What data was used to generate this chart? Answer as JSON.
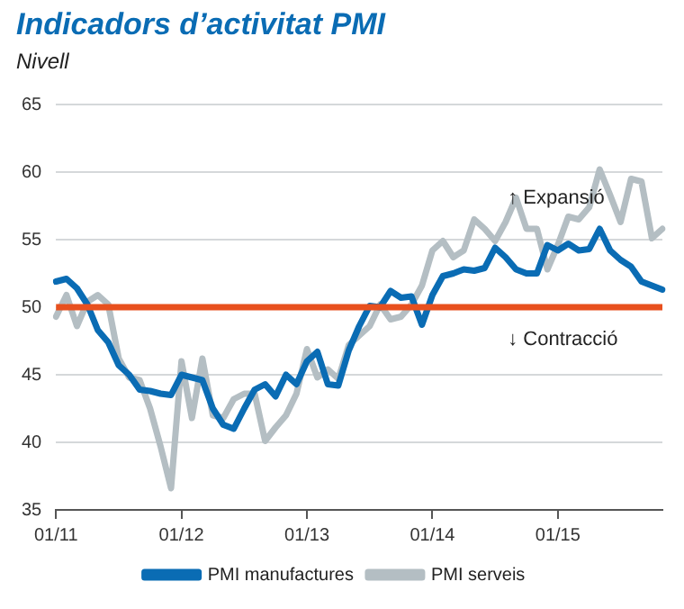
{
  "chart_data": {
    "type": "line",
    "title": "Indicadors d’activitat PMI",
    "ylabel": "Nivell",
    "categories": [
      "01/11",
      null,
      null,
      null,
      null,
      null,
      null,
      null,
      null,
      null,
      null,
      null,
      "01/12",
      null,
      null,
      null,
      null,
      null,
      null,
      null,
      null,
      null,
      null,
      null,
      "01/13",
      null,
      null,
      null,
      null,
      null,
      null,
      null,
      null,
      null,
      null,
      null,
      "01/14",
      null,
      null,
      null,
      null,
      null,
      null,
      null,
      null,
      null,
      null,
      null,
      "01/15",
      null,
      null,
      null,
      null,
      null,
      null,
      null,
      null,
      null,
      null
    ],
    "series": [
      {
        "name": "PMI manufactures",
        "color": "#0a6cb4",
        "values": [
          51.9,
          52.1,
          51.4,
          50.2,
          48.3,
          47.4,
          45.7,
          45.0,
          43.9,
          43.8,
          43.6,
          43.5,
          45.0,
          44.8,
          44.6,
          42.5,
          41.3,
          41.0,
          42.5,
          43.9,
          44.3,
          43.4,
          45.0,
          44.3,
          46.0,
          46.7,
          44.3,
          44.2,
          46.8,
          48.6,
          50.1,
          50.0,
          51.2,
          50.7,
          50.8,
          48.7,
          50.9,
          52.3,
          52.5,
          52.8,
          52.7,
          52.9,
          54.4,
          53.7,
          52.8,
          52.5,
          52.5,
          54.6,
          54.2,
          54.7,
          54.2,
          54.3,
          55.8,
          54.2,
          53.5,
          53.0,
          51.9,
          51.6,
          51.3
        ]
      },
      {
        "name": "PMI serveis",
        "color": "#b4bec3",
        "values": [
          49.3,
          50.9,
          48.6,
          50.4,
          50.9,
          50.2,
          46.2,
          44.8,
          44.6,
          42.5,
          39.7,
          36.6,
          46.0,
          41.8,
          46.2,
          42.0,
          41.8,
          43.2,
          43.6,
          43.6,
          40.1,
          41.1,
          42.0,
          43.6,
          46.9,
          44.8,
          45.4,
          44.7,
          47.2,
          47.9,
          48.6,
          50.2,
          49.1,
          49.3,
          50.2,
          51.6,
          54.2,
          54.9,
          53.7,
          54.2,
          56.5,
          55.8,
          54.9,
          56.3,
          58.1,
          55.8,
          55.8,
          52.8,
          54.6,
          56.7,
          56.5,
          57.4,
          60.2,
          58.3,
          56.3,
          59.5,
          59.3,
          55.1,
          55.8
        ]
      }
    ],
    "ylim": [
      35,
      65
    ],
    "yticks": [
      35,
      40,
      45,
      50,
      55,
      60,
      65
    ],
    "grid": "y",
    "legend": "bottom",
    "marker": "none",
    "line_style": "solid",
    "ref_lines": [
      {
        "axis": "y",
        "value": 50,
        "color": "#e8501e"
      }
    ],
    "annotations": [
      "↑ Expansió",
      "↓ Contracció"
    ]
  }
}
